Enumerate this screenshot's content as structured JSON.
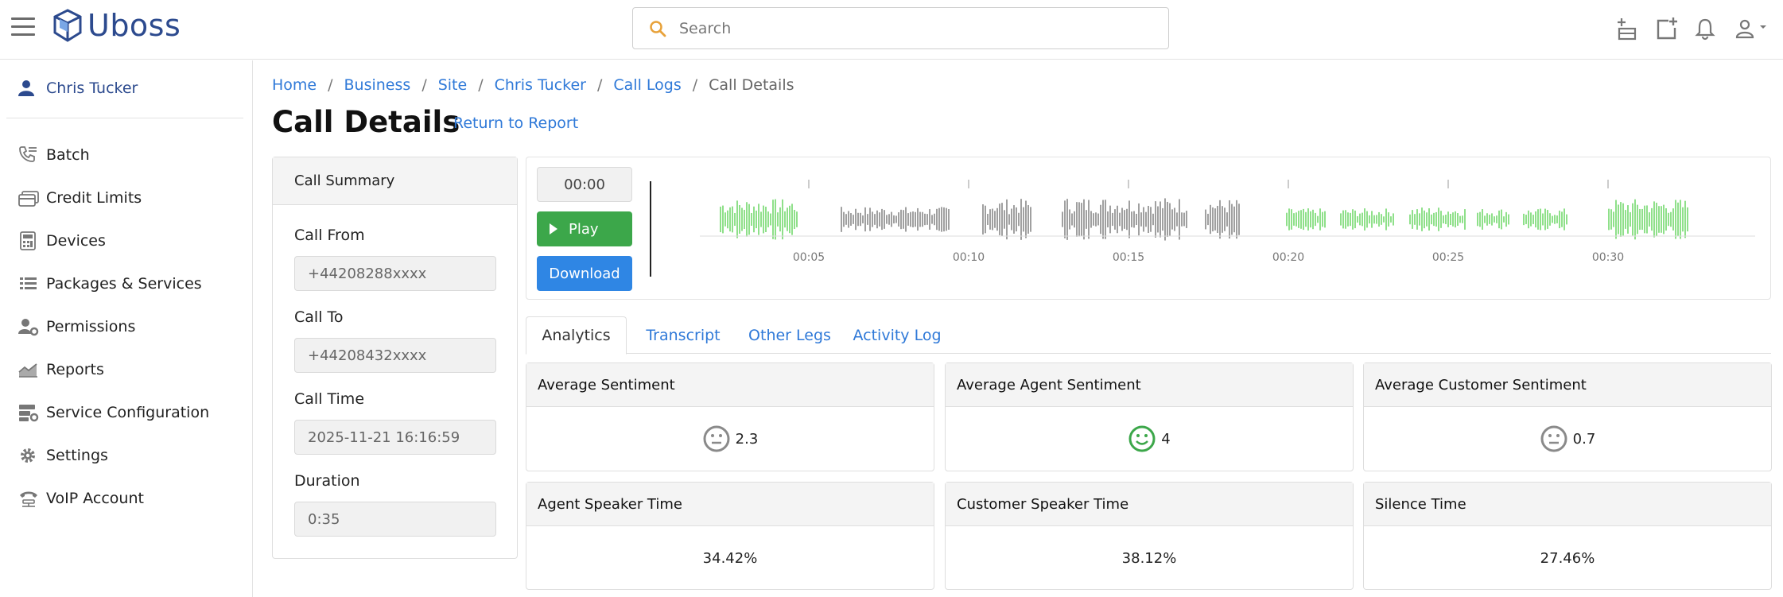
{
  "header": {
    "logo_text": "Uboss",
    "search_placeholder": "Search"
  },
  "sidebar": {
    "user_name": "Chris Tucker",
    "items": [
      {
        "label": "Batch",
        "icon": "phone-list-icon"
      },
      {
        "label": "Credit Limits",
        "icon": "credit-card-icon"
      },
      {
        "label": "Devices",
        "icon": "calculator-icon"
      },
      {
        "label": "Packages & Services",
        "icon": "list-icon"
      },
      {
        "label": "Permissions",
        "icon": "user-gear-icon"
      },
      {
        "label": "Reports",
        "icon": "chart-area-icon"
      },
      {
        "label": "Service Configuration",
        "icon": "server-gear-icon"
      },
      {
        "label": "Settings",
        "icon": "gear-icon"
      },
      {
        "label": "VoIP Account",
        "icon": "voip-icon"
      }
    ]
  },
  "breadcrumb": {
    "items": [
      "Home",
      "Business",
      "Site",
      "Chris Tucker",
      "Call Logs"
    ],
    "current": "Call Details"
  },
  "page": {
    "title": "Call Details",
    "return_link": "Return to Report"
  },
  "summary": {
    "title": "Call Summary",
    "fields": [
      {
        "label": "Call From",
        "value": "+44208288xxxx"
      },
      {
        "label": "Call To",
        "value": "+44208432xxxx"
      },
      {
        "label": "Call Time",
        "value": "2025-11-21 16:16:59"
      },
      {
        "label": "Duration",
        "value": "0:35"
      }
    ]
  },
  "player": {
    "time": "00:00",
    "play_label": "Play",
    "download_label": "Download",
    "ticks": [
      "00:05",
      "00:10",
      "00:15",
      "00:20",
      "00:25",
      "00:30"
    ],
    "colors": {
      "agent": "#8fe08a",
      "customer": "#a0a0a0"
    }
  },
  "tabs": [
    "Analytics",
    "Transcript",
    "Other Legs",
    "Activity Log"
  ],
  "metrics": [
    {
      "title": "Average Sentiment",
      "value": "2.3",
      "icon": "neutral-face-icon",
      "icon_color": "#8a8a8a"
    },
    {
      "title": "Average Agent Sentiment",
      "value": "4",
      "icon": "smile-face-icon",
      "icon_color": "#3ca74a"
    },
    {
      "title": "Average Customer Sentiment",
      "value": "0.7",
      "icon": "neutral-face-icon",
      "icon_color": "#8a8a8a"
    },
    {
      "title": "Agent Speaker Time",
      "value": "34.42%"
    },
    {
      "title": "Customer Speaker Time",
      "value": "38.12%"
    },
    {
      "title": "Silence Time",
      "value": "27.46%"
    }
  ]
}
